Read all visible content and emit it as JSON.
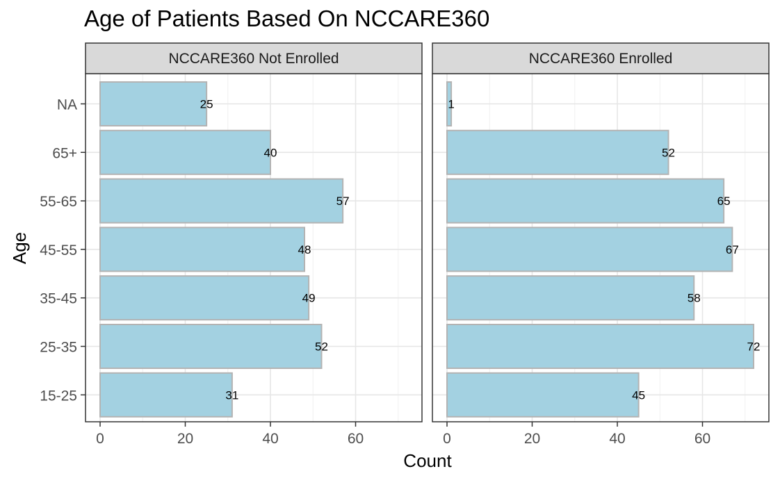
{
  "chart_data": {
    "type": "bar",
    "orientation": "horizontal",
    "title": "Age of Patients Based On NCCARE360",
    "xlabel": "Count",
    "ylabel": "Age",
    "categories": [
      "15-25",
      "25-35",
      "35-45",
      "45-55",
      "55-65",
      "65+",
      "NA"
    ],
    "xlim": [
      0,
      75
    ],
    "x_ticks": [
      0,
      20,
      40,
      60
    ],
    "grid": true,
    "bar_fill": "#a3d1e1",
    "bar_stroke": "#b3b3b3",
    "panels": [
      {
        "name": "NCCARE360 Not Enrolled",
        "values": [
          31,
          52,
          49,
          48,
          57,
          40,
          25
        ]
      },
      {
        "name": "NCCARE360 Enrolled",
        "values": [
          45,
          72,
          58,
          67,
          65,
          52,
          1
        ]
      }
    ]
  }
}
